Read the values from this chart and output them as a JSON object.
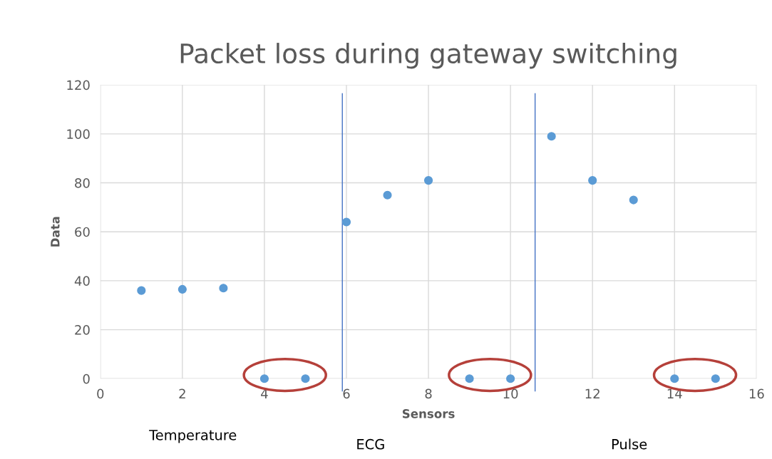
{
  "chart_data": {
    "type": "scatter",
    "title": "Packet loss during gateway switching",
    "xlabel": "Sensors",
    "ylabel": "Data",
    "x": [
      1,
      2,
      3,
      4,
      5,
      6,
      7,
      8,
      9,
      10,
      11,
      12,
      13,
      14,
      15
    ],
    "series": [
      {
        "color": "#5b9bd5",
        "values": [
          36,
          36.5,
          37,
          0,
          0,
          64,
          75,
          81,
          0,
          0,
          99,
          81,
          73,
          0,
          0
        ]
      }
    ],
    "xlim": [
      0,
      16
    ],
    "xticks": [
      0,
      2,
      4,
      6,
      8,
      10,
      12,
      14,
      16
    ],
    "ylim": [
      0,
      120
    ],
    "yticks": [
      0,
      20,
      40,
      60,
      80,
      100,
      120
    ],
    "grid": true,
    "marker": "circle",
    "ref_lines": [
      {
        "axis": "x",
        "value": 5.9,
        "color": "#4472c4"
      },
      {
        "axis": "x",
        "value": 10.6,
        "color": "#4472c4"
      }
    ],
    "annotations": [
      "Temperature",
      "ECG",
      "Pulse"
    ]
  }
}
